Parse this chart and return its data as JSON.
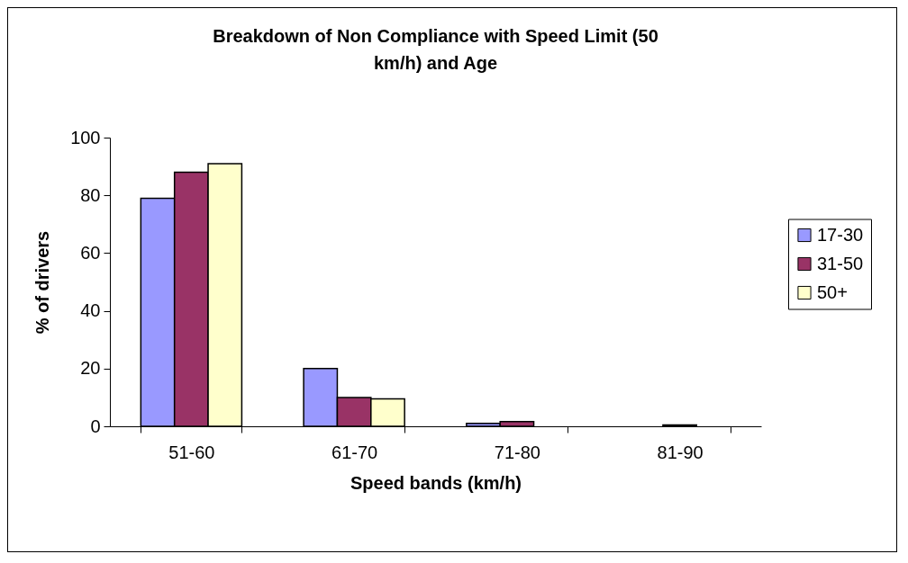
{
  "chart_data": {
    "type": "bar",
    "title": "Breakdown of Non Compliance with Speed Limit (50 km/h) and Age",
    "xlabel": "Speed bands (km/h)",
    "ylabel": "% of drivers",
    "categories": [
      "51-60",
      "61-70",
      "71-80",
      "81-90"
    ],
    "series": [
      {
        "name": "17-30",
        "color": "#9999ff",
        "values": [
          79,
          20,
          1,
          null
        ]
      },
      {
        "name": "31-50",
        "color": "#993366",
        "values": [
          88,
          10,
          1.6,
          0.5
        ]
      },
      {
        "name": "50+",
        "color": "#ffffcc",
        "values": [
          91,
          9.5,
          null,
          null
        ]
      }
    ],
    "ylim": [
      0,
      100
    ],
    "yticks": [
      0,
      20,
      40,
      60,
      80,
      100
    ],
    "grid": false,
    "legend": "right"
  }
}
